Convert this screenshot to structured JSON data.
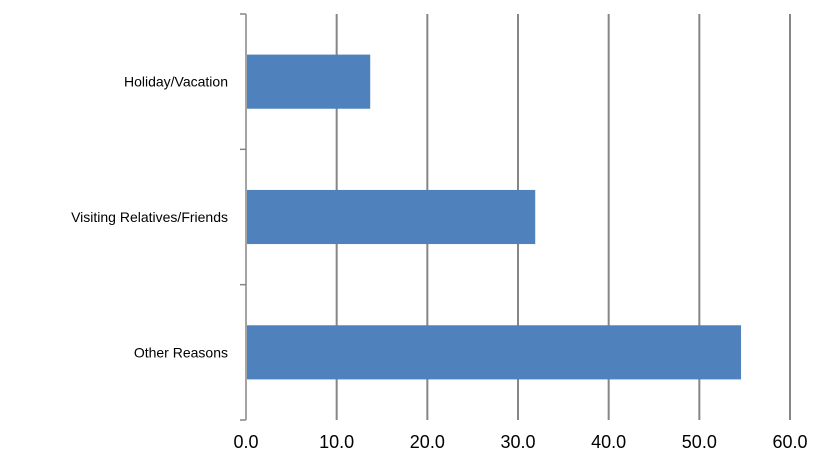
{
  "chart_data": {
    "type": "bar",
    "orientation": "horizontal",
    "categories": [
      "Holiday/Vacation",
      "Visiting Relatives/Friends",
      "Other Reasons"
    ],
    "values": [
      13.7,
      31.9,
      54.6
    ],
    "xlim": [
      0,
      60
    ],
    "xticks": [
      "0.0",
      "10.0",
      "20.0",
      "30.0",
      "40.0",
      "50.0",
      "60.0"
    ],
    "title": "",
    "xlabel": "",
    "ylabel": "",
    "grid": "vertical",
    "legend": "none",
    "bar_color": "#4F81BD",
    "grid_color": "#868686"
  }
}
